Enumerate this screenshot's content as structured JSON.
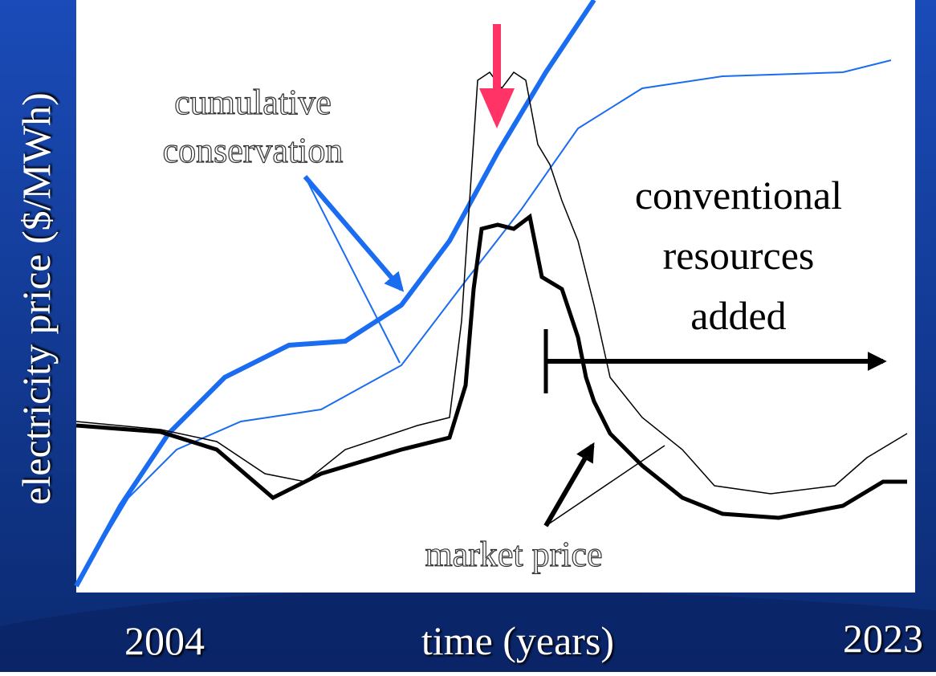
{
  "y_axis_label": "electricity price ($/MWh)",
  "x_axis": {
    "start": "2004",
    "label": "time (years)",
    "end": "2023"
  },
  "annotations": {
    "conservation": [
      "cumulative",
      "conservation"
    ],
    "conventional": [
      "conventional",
      "resources",
      "added"
    ],
    "market": "market price"
  }
}
